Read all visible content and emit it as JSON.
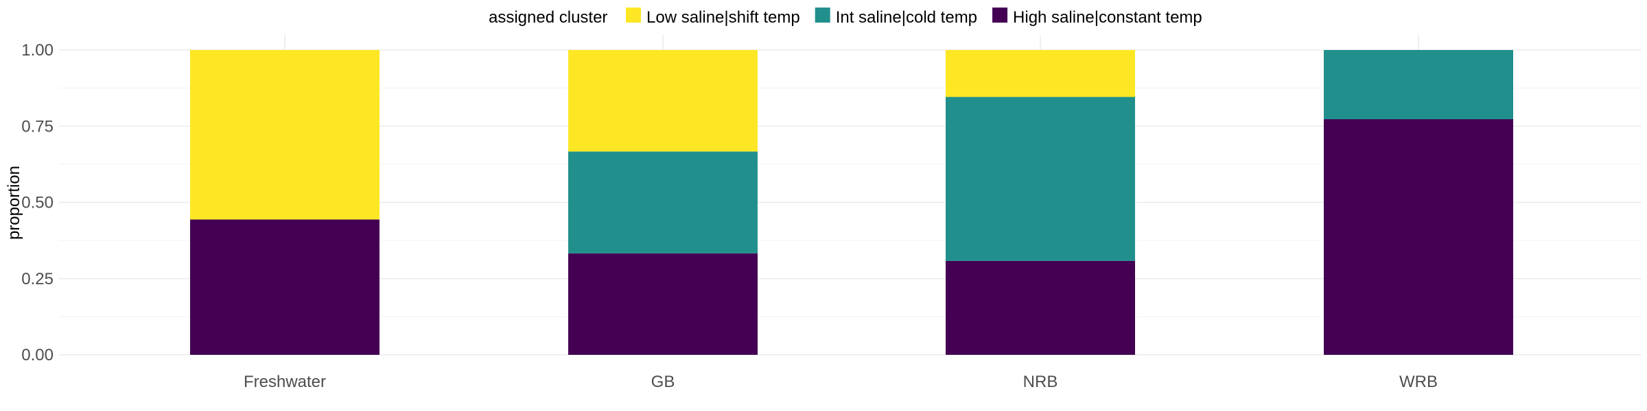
{
  "chart_data": {
    "type": "bar",
    "stacked": true,
    "categories": [
      "Freshwater",
      "GB",
      "NRB",
      "WRB"
    ],
    "series": [
      {
        "name": "High saline|constant temp",
        "color": "#440154",
        "values": [
          0.444,
          0.333,
          0.308,
          0.773
        ]
      },
      {
        "name": "Int saline|cold temp",
        "color": "#21908C",
        "values": [
          0.0,
          0.334,
          0.538,
          0.227
        ]
      },
      {
        "name": "Low saline|shift temp",
        "color": "#FDE725",
        "values": [
          0.556,
          0.333,
          0.154,
          0.0
        ]
      }
    ],
    "legend": {
      "title": "assigned cluster",
      "position": "top",
      "order": [
        "Low saline|shift temp",
        "Int saline|cold temp",
        "High saline|constant temp"
      ]
    },
    "xlabel": "",
    "ylabel": "proportion",
    "ylim": [
      0,
      1
    ],
    "yticks": [
      "0.00",
      "0.25",
      "0.50",
      "0.75",
      "1.00"
    ],
    "grid": true
  }
}
